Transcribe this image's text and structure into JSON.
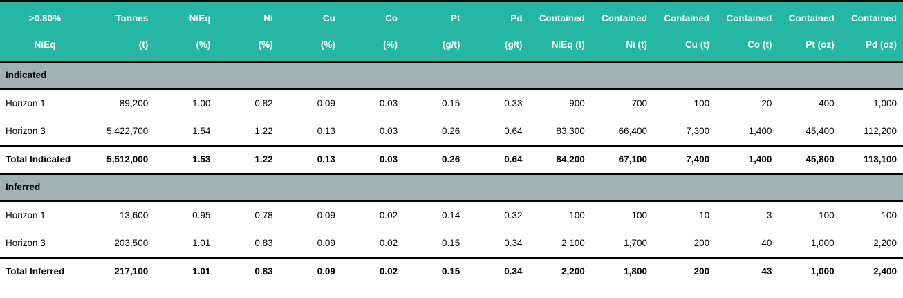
{
  "chart_data": {
    "type": "table",
    "cutoff_label": ">0.80% NiEq",
    "header": [
      {
        "line1": ">0.80%",
        "line2": "NiEq"
      },
      {
        "line1": "Tonnes",
        "line2": "(t)"
      },
      {
        "line1": "NiEq",
        "line2": "(%)"
      },
      {
        "line1": "Ni",
        "line2": "(%)"
      },
      {
        "line1": "Cu",
        "line2": "(%)"
      },
      {
        "line1": "Co",
        "line2": "(%)"
      },
      {
        "line1": "Pt",
        "line2": "(g/t)"
      },
      {
        "line1": "Pd",
        "line2": "(g/t)"
      },
      {
        "line1": "Contained",
        "line2": "NiEq (t)"
      },
      {
        "line1": "Contained",
        "line2": "Ni (t)"
      },
      {
        "line1": "Contained",
        "line2": "Cu (t)"
      },
      {
        "line1": "Contained",
        "line2": "Co (t)"
      },
      {
        "line1": "Contained",
        "line2": "Pt (oz)"
      },
      {
        "line1": "Contained",
        "line2": "Pd (oz)"
      }
    ],
    "sections": [
      {
        "name": "Indicated",
        "rows": [
          {
            "label": "Horizon 1",
            "values": [
              "89,200",
              "1.00",
              "0.82",
              "0.09",
              "0.03",
              "0.15",
              "0.33",
              "900",
              "700",
              "100",
              "20",
              "400",
              "1,000"
            ]
          },
          {
            "label": "Horizon 3",
            "values": [
              "5,422,700",
              "1.54",
              "1.22",
              "0.13",
              "0.03",
              "0.26",
              "0.64",
              "83,300",
              "66,400",
              "7,300",
              "1,400",
              "45,400",
              "112,200"
            ]
          }
        ],
        "total": {
          "label": "Total Indicated",
          "values": [
            "5,512,000",
            "1.53",
            "1.22",
            "0.13",
            "0.03",
            "0.26",
            "0.64",
            "84,200",
            "67,100",
            "7,400",
            "1,400",
            "45,800",
            "113,100"
          ]
        }
      },
      {
        "name": "Inferred",
        "rows": [
          {
            "label": "Horizon 1",
            "values": [
              "13,600",
              "0.95",
              "0.78",
              "0.09",
              "0.02",
              "0.14",
              "0.32",
              "100",
              "100",
              "10",
              "3",
              "100",
              "100"
            ]
          },
          {
            "label": "Horizon 3",
            "values": [
              "203,500",
              "1.01",
              "0.83",
              "0.09",
              "0.02",
              "0.15",
              "0.34",
              "2,100",
              "1,700",
              "200",
              "40",
              "1,000",
              "2,200"
            ]
          }
        ],
        "total": {
          "label": "Total Inferred",
          "values": [
            "217,100",
            "1.01",
            "0.83",
            "0.09",
            "0.02",
            "0.15",
            "0.34",
            "2,200",
            "1,800",
            "200",
            "43",
            "1,000",
            "2,400"
          ]
        }
      }
    ]
  },
  "colors": {
    "header_bg": "#25b7a3",
    "header_text": "#ffffff",
    "section_bg": "#a0b1b4",
    "border": "#000000",
    "body_text": "#000000"
  }
}
